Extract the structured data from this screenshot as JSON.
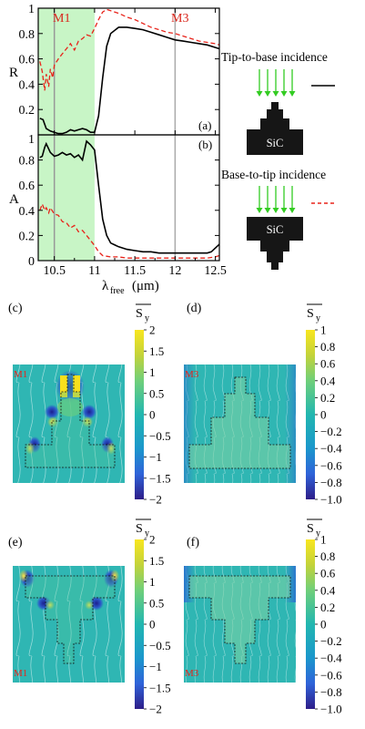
{
  "figure": {
    "top_panel": {
      "y_label_top": "R",
      "y_label_bottom": "A",
      "x_label_main": "λ",
      "x_label_sub": "free",
      "x_label_unit": "(μm)",
      "panel_a": "(a)",
      "panel_b": "(b)",
      "marker_m1": "M1",
      "marker_m3": "M3",
      "x_ticks": [
        "10.5",
        "11",
        "11.5",
        "12",
        "12.5"
      ],
      "y_ticks_top": [
        "1",
        "0.8",
        "0.6",
        "0.4",
        "0.2"
      ],
      "y_ticks_bottom": [
        "1",
        "0.8",
        "0.6",
        "0.4",
        "0.2",
        "0"
      ],
      "legend_tip": "Tip-to-base incidence",
      "legend_base": "Base-to-tip incidence",
      "material": "SiC",
      "colors": {
        "solid": "#000000",
        "dashed": "#e8231a",
        "band": "#c8f5c6",
        "arrow": "#33cc22"
      }
    },
    "field_panels": [
      {
        "label": "(c)",
        "mode": "M1",
        "cbar_title": "S",
        "cbar_sub": "y",
        "ticks": [
          "2",
          "1.5",
          "1",
          "0.5",
          "0",
          "−0.5",
          "−1",
          "−1.5",
          "−2"
        ]
      },
      {
        "label": "(d)",
        "mode": "M3",
        "cbar_title": "S",
        "cbar_sub": "y",
        "ticks": [
          "1",
          "0.8",
          "0.6",
          "0.4",
          "0.2",
          "0",
          "−0.2",
          "−0.4",
          "−0.6",
          "−0.8",
          "−1.0"
        ]
      },
      {
        "label": "(e)",
        "mode": "M1",
        "cbar_title": "S",
        "cbar_sub": "y",
        "ticks": [
          "2",
          "1.5",
          "1",
          "0.5",
          "0",
          "−0.5",
          "−1",
          "−1.5",
          "−2"
        ]
      },
      {
        "label": "(f)",
        "mode": "M3",
        "cbar_title": "S",
        "cbar_sub": "y",
        "ticks": [
          "1",
          "0.8",
          "0.6",
          "0.4",
          "0.2",
          "0",
          "−0.2",
          "−0.4",
          "−0.6",
          "−0.8",
          "−1.0"
        ]
      }
    ]
  },
  "chart_data": [
    {
      "type": "line",
      "name": "reflectance",
      "xlim": [
        10.3,
        12.55
      ],
      "ylim": [
        0,
        1
      ],
      "band": [
        10.3,
        11.0
      ],
      "markers": [
        10.5,
        12.0
      ],
      "series": [
        {
          "style": "solid",
          "x": [
            10.32,
            10.36,
            10.4,
            10.45,
            10.5,
            10.55,
            10.6,
            10.65,
            10.7,
            10.75,
            10.8,
            10.85,
            10.9,
            10.95,
            11.0,
            11.05,
            11.1,
            11.15,
            11.2,
            11.3,
            11.4,
            11.5,
            11.6,
            11.7,
            11.8,
            11.9,
            12.0,
            12.1,
            12.2,
            12.3,
            12.4,
            12.5,
            12.55
          ],
          "y": [
            0.13,
            0.12,
            0.05,
            0.03,
            0.02,
            0.01,
            0.01,
            0.02,
            0.04,
            0.03,
            0.04,
            0.05,
            0.04,
            0.02,
            0.02,
            0.15,
            0.45,
            0.7,
            0.8,
            0.85,
            0.85,
            0.84,
            0.83,
            0.81,
            0.79,
            0.77,
            0.75,
            0.74,
            0.73,
            0.72,
            0.71,
            0.69,
            0.68
          ]
        },
        {
          "style": "dashed",
          "x": [
            10.32,
            10.35,
            10.38,
            10.4,
            10.43,
            10.45,
            10.48,
            10.5,
            10.55,
            10.6,
            10.65,
            10.7,
            10.75,
            10.8,
            10.85,
            10.9,
            10.95,
            11.0,
            11.05,
            11.1,
            11.15,
            11.2,
            11.3,
            11.4,
            11.5,
            11.6,
            11.7,
            11.8,
            11.9,
            12.0,
            12.1,
            12.2,
            12.3,
            12.4,
            12.5,
            12.55
          ],
          "y": [
            0.58,
            0.5,
            0.35,
            0.48,
            0.38,
            0.52,
            0.45,
            0.55,
            0.6,
            0.64,
            0.68,
            0.72,
            0.67,
            0.74,
            0.76,
            0.79,
            0.78,
            0.84,
            0.91,
            0.97,
            0.99,
            0.98,
            0.96,
            0.93,
            0.91,
            0.88,
            0.85,
            0.83,
            0.81,
            0.8,
            0.78,
            0.76,
            0.74,
            0.73,
            0.72,
            0.71
          ]
        }
      ]
    },
    {
      "type": "line",
      "name": "absorptance",
      "xlim": [
        10.3,
        12.55
      ],
      "ylim": [
        0,
        1
      ],
      "band": [
        10.3,
        11.0
      ],
      "markers": [
        10.5,
        12.0
      ],
      "series": [
        {
          "style": "solid",
          "x": [
            10.32,
            10.35,
            10.38,
            10.4,
            10.45,
            10.5,
            10.55,
            10.6,
            10.65,
            10.7,
            10.75,
            10.8,
            10.85,
            10.9,
            10.95,
            11.0,
            11.05,
            11.1,
            11.15,
            11.2,
            11.3,
            11.4,
            11.5,
            11.6,
            11.7,
            11.8,
            11.9,
            12.0,
            12.1,
            12.2,
            12.3,
            12.4,
            12.45,
            12.5,
            12.55
          ],
          "y": [
            0.82,
            0.83,
            0.9,
            0.93,
            0.86,
            0.83,
            0.84,
            0.86,
            0.84,
            0.85,
            0.82,
            0.84,
            0.8,
            0.95,
            0.92,
            0.88,
            0.6,
            0.33,
            0.2,
            0.14,
            0.11,
            0.09,
            0.08,
            0.07,
            0.07,
            0.06,
            0.06,
            0.06,
            0.06,
            0.06,
            0.06,
            0.06,
            0.07,
            0.1,
            0.13
          ]
        },
        {
          "style": "dashed",
          "x": [
            10.32,
            10.35,
            10.38,
            10.4,
            10.43,
            10.45,
            10.5,
            10.55,
            10.6,
            10.65,
            10.7,
            10.75,
            10.8,
            10.85,
            10.9,
            10.95,
            11.0,
            11.05,
            11.1,
            11.2,
            11.3,
            11.4,
            11.5,
            11.6,
            11.7,
            11.8,
            11.9,
            12.0,
            12.1,
            12.2,
            12.3,
            12.4,
            12.5,
            12.55
          ],
          "y": [
            0.4,
            0.45,
            0.4,
            0.42,
            0.38,
            0.42,
            0.37,
            0.36,
            0.31,
            0.3,
            0.26,
            0.28,
            0.23,
            0.24,
            0.2,
            0.16,
            0.12,
            0.07,
            0.04,
            0.03,
            0.03,
            0.02,
            0.02,
            0.02,
            0.02,
            0.02,
            0.02,
            0.02,
            0.02,
            0.02,
            0.02,
            0.02,
            0.03,
            0.04
          ]
        }
      ]
    }
  ]
}
